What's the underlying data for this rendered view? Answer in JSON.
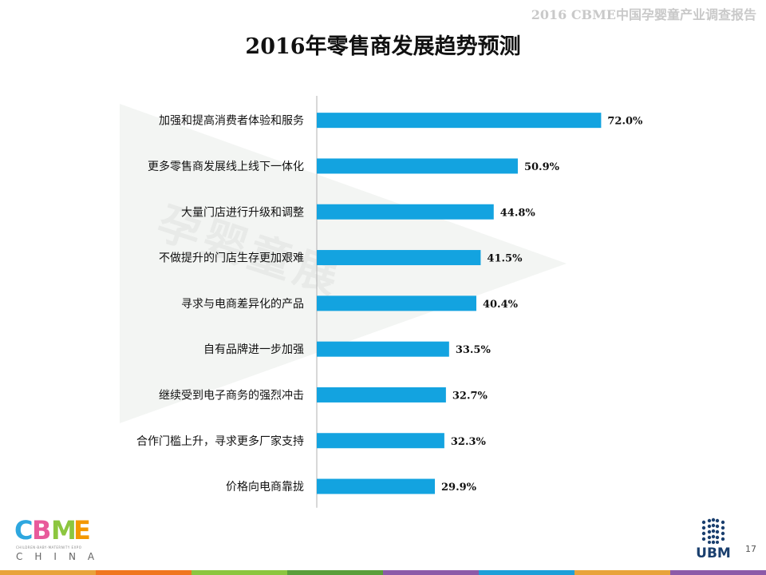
{
  "header": {
    "report_title": "2016 CBME中国孕婴童产业调查报告"
  },
  "chart_data": {
    "type": "bar",
    "orientation": "horizontal",
    "title": "2016年零售商发展趋势预测",
    "categories": [
      "加强和提高消费者体验和服务",
      "更多零售商发展线上线下一体化",
      "大量门店进行升级和调整",
      "不做提升的门店生存更加艰难",
      "寻求与电商差异化的产品",
      "自有品牌进一步加强",
      "继续受到电子商务的强烈冲击",
      "合作门槛上升，寻求更多厂家支持",
      "价格向电商靠拢"
    ],
    "values": [
      72.0,
      50.9,
      44.8,
      41.5,
      40.4,
      33.5,
      32.7,
      32.3,
      29.9
    ],
    "value_labels": [
      "72.0%",
      "50.9%",
      "44.8%",
      "41.5%",
      "40.4%",
      "33.5%",
      "32.7%",
      "32.3%",
      "29.9%"
    ],
    "unit": "%",
    "xlim": [
      0,
      100
    ],
    "grid": false,
    "bar_color": "#13a3e0"
  },
  "watermark": {
    "text": "孕婴童展"
  },
  "logo_left": {
    "letters": [
      "C",
      "B",
      "M",
      "E"
    ],
    "colors": [
      "#2ea7df",
      "#e85a9b",
      "#8cc63f",
      "#f39800"
    ],
    "subtitle": "CHILDREN·BABY·MATERNITY EXPO",
    "text": "CHINA"
  },
  "logo_right": {
    "text": "UBM"
  },
  "page_number": "17",
  "footer_colors": [
    "#e8a33b",
    "#f0771f",
    "#8cc63f",
    "#5a9e3a",
    "#8c5aa8",
    "#1e9fd8",
    "#e8a33b",
    "#8c5aa8"
  ]
}
